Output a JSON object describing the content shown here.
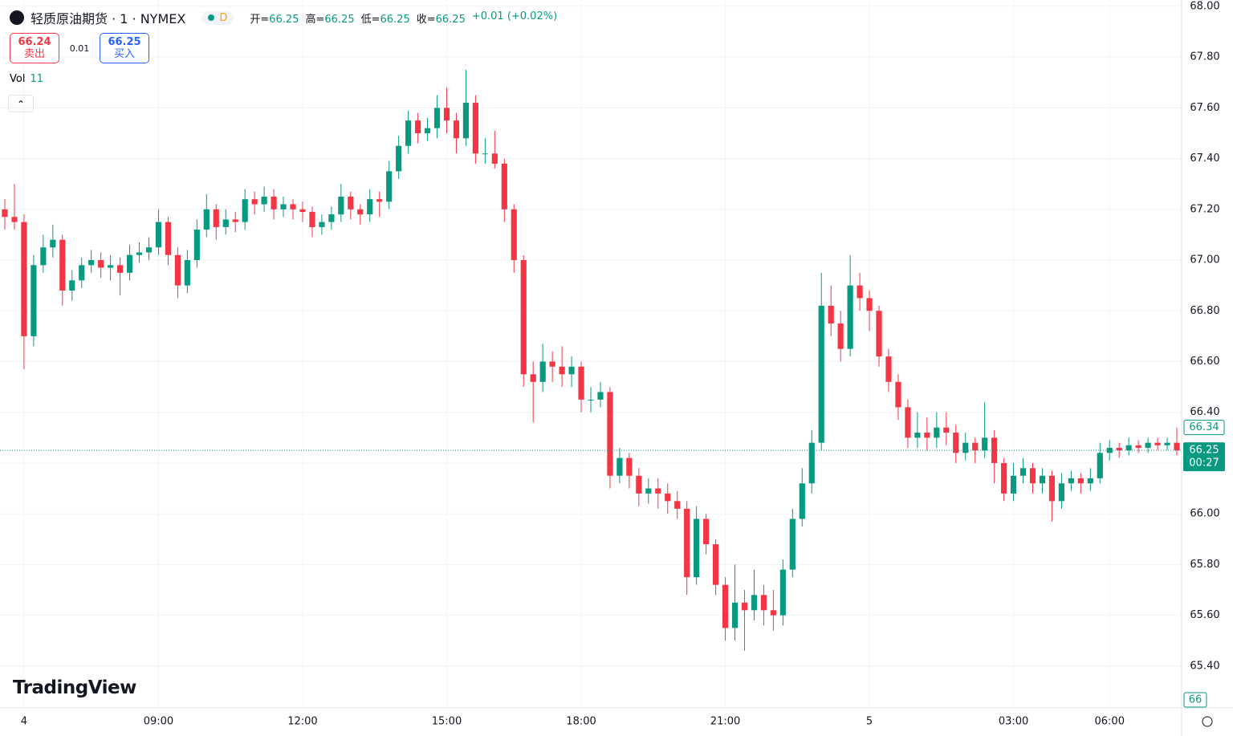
{
  "header": {
    "title": "轻质原油期货 · 1 · NYMEX",
    "interval_badge": "D",
    "ohlc": [
      {
        "label": "开=",
        "value": "66.25"
      },
      {
        "label": "高=",
        "value": "66.25"
      },
      {
        "label": "低=",
        "value": "66.25"
      },
      {
        "label": "收=",
        "value": "66.25"
      }
    ],
    "change": "+0.01 (+0.02%)",
    "sell": {
      "price": "66.24",
      "label": "卖出"
    },
    "spread": "0.01",
    "buy": {
      "price": "66.25",
      "label": "买入"
    },
    "volume": {
      "label": "Vol",
      "value": "11"
    },
    "brand": "TradingView",
    "volume_scale": "66"
  },
  "chart_data": {
    "type": "candlestick",
    "up_color": "#089981",
    "down_color": "#f23645",
    "grid": true,
    "ylim": [
      65.235,
      68.025
    ],
    "yticks": [
      {
        "value": 65.4,
        "label": "65.40"
      },
      {
        "value": 65.6,
        "label": "65.60"
      },
      {
        "value": 65.8,
        "label": "65.80"
      },
      {
        "value": 66,
        "label": "66.00"
      },
      {
        "value": 66.2,
        "label": "66.20"
      },
      {
        "value": 66.4,
        "label": "66.40"
      },
      {
        "value": 66.6,
        "label": "66.60"
      },
      {
        "value": 66.8,
        "label": "66.80"
      },
      {
        "value": 67,
        "label": "67.00"
      },
      {
        "value": 67.2,
        "label": "67.20"
      },
      {
        "value": 67.4,
        "label": "67.40"
      },
      {
        "value": 67.6,
        "label": "67.60"
      },
      {
        "value": 67.8,
        "label": "67.80"
      },
      {
        "value": 68,
        "label": "68.00"
      }
    ],
    "last_price": {
      "value": 66.25,
      "countdown": "00:27"
    },
    "high_marker": 66.34,
    "categories": [
      null,
      null,
      "4",
      null,
      null,
      null,
      null,
      null,
      null,
      null,
      null,
      null,
      null,
      null,
      null,
      null,
      "09:00",
      null,
      null,
      null,
      null,
      null,
      null,
      null,
      null,
      null,
      null,
      null,
      null,
      null,
      null,
      "12:00",
      null,
      null,
      null,
      null,
      null,
      null,
      null,
      null,
      null,
      null,
      null,
      null,
      null,
      null,
      "15:00",
      null,
      null,
      null,
      null,
      null,
      null,
      null,
      null,
      null,
      null,
      null,
      null,
      null,
      "18:00",
      null,
      null,
      null,
      null,
      null,
      null,
      null,
      null,
      null,
      null,
      null,
      null,
      null,
      null,
      "21:00",
      null,
      null,
      null,
      null,
      null,
      null,
      null,
      null,
      null,
      null,
      null,
      null,
      null,
      null,
      "5",
      null,
      null,
      null,
      null,
      null,
      null,
      null,
      null,
      null,
      null,
      null,
      null,
      null,
      null,
      "03:00",
      null,
      null,
      null,
      null,
      null,
      null,
      null,
      null,
      null,
      "06:00",
      null,
      null,
      null,
      null,
      null,
      null,
      null
    ],
    "open": [
      67.2,
      67.17,
      67.15,
      66.7,
      66.98,
      67.05,
      67.08,
      66.88,
      66.92,
      66.98,
      67.0,
      66.97,
      66.98,
      66.95,
      67.02,
      67.03,
      67.05,
      67.15,
      67.02,
      66.9,
      67.0,
      67.12,
      67.2,
      67.13,
      67.16,
      67.15,
      67.24,
      67.22,
      67.25,
      67.2,
      67.22,
      67.2,
      67.19,
      67.13,
      67.15,
      67.18,
      67.25,
      67.2,
      67.18,
      67.24,
      67.23,
      67.35,
      67.45,
      67.55,
      67.5,
      67.52,
      67.6,
      67.55,
      67.48,
      67.62,
      67.42,
      67.42,
      67.38,
      67.2,
      67.0,
      66.55,
      66.52,
      66.6,
      66.58,
      66.55,
      66.58,
      66.45,
      66.45,
      66.48,
      66.15,
      66.22,
      66.15,
      66.08,
      66.1,
      66.08,
      66.05,
      66.02,
      65.75,
      65.98,
      65.88,
      65.72,
      65.55,
      65.65,
      65.62,
      65.68,
      65.62,
      65.6,
      65.78,
      65.98,
      66.12,
      66.28,
      66.82,
      66.75,
      66.65,
      66.9,
      66.85,
      66.8,
      66.62,
      66.52,
      66.42,
      66.3,
      66.32,
      66.3,
      66.34,
      66.32,
      66.24,
      66.28,
      66.25,
      66.3,
      66.2,
      66.08,
      66.15,
      66.18,
      66.12,
      66.15,
      66.05,
      66.12,
      66.14,
      66.12,
      66.14,
      66.24,
      66.26,
      66.25,
      66.27,
      66.26,
      66.28,
      66.27,
      66.28
    ],
    "high": [
      67.24,
      67.3,
      67.18,
      67.02,
      67.1,
      67.14,
      67.1,
      66.96,
      67.01,
      67.04,
      67.03,
      67.02,
      67.01,
      67.06,
      67.07,
      67.09,
      67.2,
      67.17,
      67.05,
      67.04,
      67.16,
      67.26,
      67.22,
      67.2,
      67.19,
      67.28,
      67.27,
      67.29,
      67.28,
      67.25,
      67.24,
      67.23,
      67.21,
      67.18,
      67.21,
      67.3,
      67.27,
      67.22,
      67.28,
      67.27,
      67.39,
      67.49,
      67.59,
      67.58,
      67.56,
      67.65,
      67.68,
      67.58,
      67.75,
      67.65,
      67.48,
      67.51,
      67.4,
      67.22,
      67.02,
      66.6,
      66.67,
      66.64,
      66.66,
      66.62,
      66.6,
      66.5,
      66.52,
      66.5,
      66.26,
      66.24,
      66.18,
      66.14,
      66.14,
      66.12,
      66.09,
      66.05,
      66.03,
      66.0,
      65.9,
      65.75,
      65.8,
      65.7,
      65.78,
      65.72,
      65.7,
      65.82,
      66.02,
      66.18,
      66.33,
      66.95,
      66.9,
      66.8,
      67.02,
      66.95,
      66.88,
      66.82,
      66.65,
      66.55,
      66.45,
      66.4,
      66.38,
      66.4,
      66.4,
      66.35,
      66.32,
      66.3,
      66.44,
      66.33,
      66.22,
      66.2,
      66.22,
      66.2,
      66.18,
      66.17,
      66.16,
      66.17,
      66.16,
      66.18,
      66.28,
      66.29,
      66.28,
      66.3,
      66.29,
      66.3,
      66.3,
      66.3,
      66.34
    ],
    "low": [
      67.12,
      67.12,
      66.57,
      66.66,
      66.95,
      67.01,
      66.82,
      66.84,
      66.89,
      66.95,
      66.93,
      66.92,
      66.86,
      66.92,
      66.99,
      67.0,
      67.02,
      66.98,
      66.85,
      66.87,
      66.97,
      67.09,
      67.08,
      67.1,
      67.11,
      67.12,
      67.18,
      67.19,
      67.16,
      67.17,
      67.16,
      67.15,
      67.09,
      67.1,
      67.12,
      67.15,
      67.16,
      67.14,
      67.15,
      67.17,
      67.2,
      67.32,
      67.42,
      67.46,
      67.47,
      67.48,
      67.5,
      67.42,
      67.45,
      67.38,
      67.38,
      67.36,
      67.15,
      66.95,
      66.5,
      66.36,
      66.48,
      66.52,
      66.5,
      66.5,
      66.4,
      66.4,
      66.42,
      66.1,
      66.12,
      66.1,
      66.03,
      66.04,
      66.02,
      66.0,
      65.98,
      65.68,
      65.72,
      65.84,
      65.68,
      65.5,
      65.5,
      65.46,
      65.58,
      65.56,
      65.54,
      65.56,
      65.75,
      65.95,
      66.08,
      66.25,
      66.7,
      66.6,
      66.62,
      66.8,
      66.72,
      66.58,
      66.48,
      66.37,
      66.26,
      66.26,
      66.25,
      66.26,
      66.27,
      66.2,
      66.21,
      66.2,
      66.22,
      66.12,
      66.05,
      66.05,
      66.12,
      66.08,
      66.08,
      65.97,
      66.02,
      66.09,
      66.08,
      66.09,
      66.12,
      66.21,
      66.22,
      66.23,
      66.24,
      66.24,
      66.25,
      66.25,
      66.23
    ],
    "close": [
      67.17,
      67.15,
      66.7,
      66.98,
      67.05,
      67.08,
      66.88,
      66.92,
      66.98,
      67.0,
      66.97,
      66.98,
      66.95,
      67.02,
      67.03,
      67.05,
      67.15,
      67.02,
      66.9,
      67.0,
      67.12,
      67.2,
      67.13,
      67.16,
      67.15,
      67.24,
      67.22,
      67.25,
      67.2,
      67.22,
      67.2,
      67.19,
      67.13,
      67.15,
      67.18,
      67.25,
      67.2,
      67.18,
      67.24,
      67.23,
      67.35,
      67.45,
      67.55,
      67.5,
      67.52,
      67.6,
      67.55,
      67.48,
      67.62,
      67.42,
      67.42,
      67.38,
      67.2,
      67.0,
      66.55,
      66.52,
      66.6,
      66.58,
      66.55,
      66.58,
      66.45,
      66.45,
      66.48,
      66.15,
      66.22,
      66.15,
      66.08,
      66.1,
      66.08,
      66.05,
      66.02,
      65.75,
      65.98,
      65.88,
      65.72,
      65.55,
      65.65,
      65.62,
      65.68,
      65.62,
      65.6,
      65.78,
      65.98,
      66.12,
      66.28,
      66.82,
      66.75,
      66.65,
      66.9,
      66.85,
      66.8,
      66.62,
      66.52,
      66.42,
      66.3,
      66.32,
      66.3,
      66.34,
      66.32,
      66.24,
      66.28,
      66.25,
      66.3,
      66.2,
      66.08,
      66.15,
      66.18,
      66.12,
      66.15,
      66.05,
      66.12,
      66.14,
      66.12,
      66.14,
      66.24,
      66.26,
      66.25,
      66.27,
      66.26,
      66.28,
      66.27,
      66.28,
      66.25
    ]
  }
}
